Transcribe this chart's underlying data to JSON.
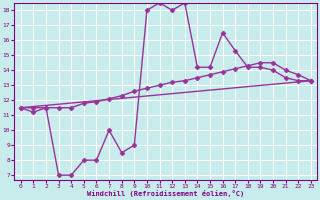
{
  "xlabel": "Windchill (Refroidissement éolien,°C)",
  "bg_color": "#c8ecec",
  "line_color": "#993399",
  "grid_color": "#ffffff",
  "xlim_min": -0.5,
  "xlim_max": 23.5,
  "ylim_min": 6.7,
  "ylim_max": 18.5,
  "yticks": [
    7,
    8,
    9,
    10,
    11,
    12,
    13,
    14,
    15,
    16,
    17,
    18
  ],
  "xticks": [
    0,
    1,
    2,
    3,
    4,
    5,
    6,
    7,
    8,
    9,
    10,
    11,
    12,
    13,
    14,
    15,
    16,
    17,
    18,
    19,
    20,
    21,
    22,
    23
  ],
  "line1_x": [
    0,
    1,
    2,
    3,
    4,
    5,
    6,
    7,
    8,
    9,
    10,
    11,
    12,
    13,
    14,
    15,
    16,
    17,
    18,
    19,
    20,
    21,
    22,
    23
  ],
  "line1_y": [
    11.5,
    11.2,
    11.5,
    7.0,
    7.0,
    8.0,
    8.0,
    10.0,
    8.5,
    9.0,
    18.0,
    18.5,
    18.0,
    18.5,
    14.2,
    14.2,
    16.5,
    15.3,
    14.2,
    14.2,
    14.0,
    13.5,
    13.3,
    13.3
  ],
  "line2_x": [
    0,
    1,
    2,
    3,
    4,
    5,
    6,
    7,
    8,
    9,
    10,
    11,
    12,
    13,
    14,
    15,
    16,
    17,
    18,
    19,
    20,
    21,
    22,
    23
  ],
  "line2_y": [
    11.5,
    11.5,
    11.5,
    11.5,
    11.5,
    11.8,
    11.9,
    12.1,
    12.3,
    12.6,
    12.8,
    13.0,
    13.2,
    13.3,
    13.5,
    13.7,
    13.9,
    14.1,
    14.3,
    14.5,
    14.5,
    14.0,
    13.7,
    13.3
  ],
  "line3_x": [
    0,
    23
  ],
  "line3_y": [
    11.5,
    13.3
  ],
  "marker": "D",
  "marker_size": 2.5,
  "linewidth": 1.0
}
